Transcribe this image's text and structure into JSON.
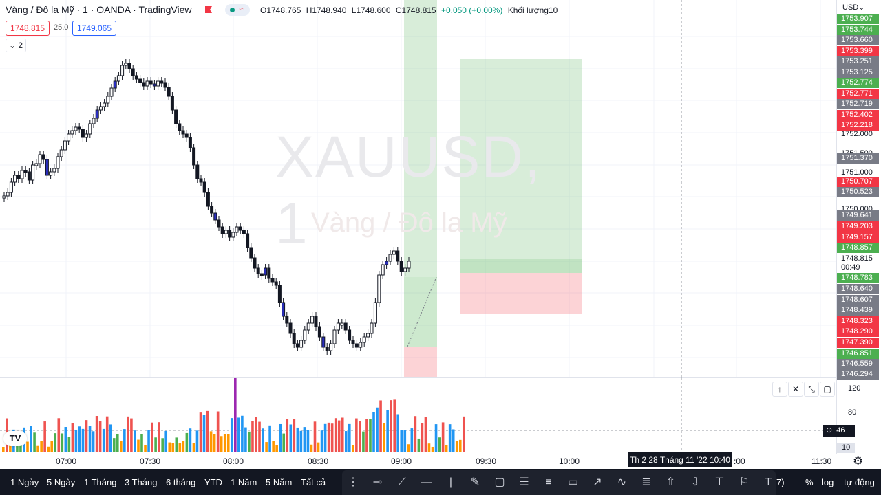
{
  "header": {
    "title": "Vàng / Đô la Mỹ · 1 · OANDA · TradingView",
    "wave_glyph": "≈",
    "ohlc": {
      "o": "O1748.765",
      "h": "H1748.940",
      "l": "L1748.600",
      "c": "C1748.815",
      "change": "+0.050 (+0.00%)",
      "volume": "Khối lượng10"
    }
  },
  "trade": {
    "sell": "1748.815",
    "spread": "25.0",
    "buy": "1749.065"
  },
  "collapse_label": "2",
  "watermark": {
    "symbol": "XAUUSD, 1",
    "name": "Vàng / Đô la Mỹ"
  },
  "currency": "USD",
  "price_axis": {
    "labels": [
      {
        "text": "1753.907",
        "color": "#4caf50"
      },
      {
        "text": "1753.744",
        "color": "#4caf50"
      },
      {
        "text": "1753.660",
        "color": "#787b86"
      },
      {
        "text": "1753.399",
        "color": "#f23645"
      },
      {
        "text": "1753.251",
        "color": "#787b86"
      },
      {
        "text": "1753.125",
        "color": "#787b86"
      },
      {
        "text": "1752.774",
        "color": "#4caf50"
      },
      {
        "text": "1752.771",
        "color": "#f23645"
      },
      {
        "text": "1752.719",
        "color": "#787b86"
      },
      {
        "text": "1752.402",
        "color": "#f23645"
      },
      {
        "text": "1752.218",
        "color": "#f23645"
      },
      {
        "text": "1752.000",
        "color": ""
      },
      {
        "text": "1751.500",
        "color": ""
      },
      {
        "text": "1751.370",
        "color": "#787b86"
      },
      {
        "text": "1751.000",
        "color": ""
      },
      {
        "text": "1750.707",
        "color": "#f23645"
      },
      {
        "text": "1750.523",
        "color": "#787b86"
      },
      {
        "text": "1750.000",
        "color": ""
      },
      {
        "text": "1749.641",
        "color": "#787b86"
      },
      {
        "text": "1749.203",
        "color": "#f23645"
      },
      {
        "text": "1749.157",
        "color": "#f23645"
      },
      {
        "text": "1748.857",
        "color": "#4caf50"
      },
      {
        "text": "1748.815",
        "color": ""
      },
      {
        "text": "00:49",
        "color": ""
      },
      {
        "text": "1748.783",
        "color": "#4caf50"
      },
      {
        "text": "1748.640",
        "color": "#787b86"
      },
      {
        "text": "1748.607",
        "color": "#787b86"
      },
      {
        "text": "1748.439",
        "color": "#787b86"
      },
      {
        "text": "1748.323",
        "color": "#f23645"
      },
      {
        "text": "1748.290",
        "color": "#f23645"
      },
      {
        "text": "1747.390",
        "color": "#f23645"
      },
      {
        "text": "1746.851",
        "color": "#4caf50"
      },
      {
        "text": "1746.559",
        "color": "#787b86"
      },
      {
        "text": "1746.294",
        "color": "#787b86"
      }
    ],
    "volume_labels": [
      "120",
      "80",
      "46",
      "10"
    ]
  },
  "time_axis": {
    "labels": [
      "07:00",
      "07:30",
      "08:00",
      "08:30",
      "09:00",
      "09:30",
      "10:00",
      "11:30"
    ],
    "crosshair": "Th 2 28 Tháng 11 '22   10:40",
    "partial_label": ":00"
  },
  "bottom": {
    "ranges": [
      "1 Ngày",
      "5 Ngày",
      "1 Tháng",
      "3 Tháng",
      "6 tháng",
      "YTD",
      "1 Năm",
      "5 Năm",
      "Tất cả"
    ],
    "right": [
      "%",
      "log",
      "tự động"
    ],
    "partial": "7)"
  },
  "drawing_tools": [
    "dots-handle-icon",
    "horizontal-ray-icon",
    "trend-line-icon",
    "horizontal-line-icon",
    "vertical-line-icon",
    "brush-icon",
    "rectangle-icon",
    "fib-retracement-icon",
    "parallel-channel-icon",
    "callout-icon",
    "arrow-marker-icon",
    "path-icon",
    "lines-icon",
    "arrow-up-icon",
    "arrow-down-icon",
    "anchored-text-icon",
    "flag-mark-icon",
    "text-icon"
  ],
  "colors": {
    "up": "#131722",
    "down": "#131722",
    "accent_blue": "#2962ff",
    "long_profit": "rgba(76,175,80,0.22)",
    "long_loss": "rgba(242,54,69,0.22)"
  }
}
